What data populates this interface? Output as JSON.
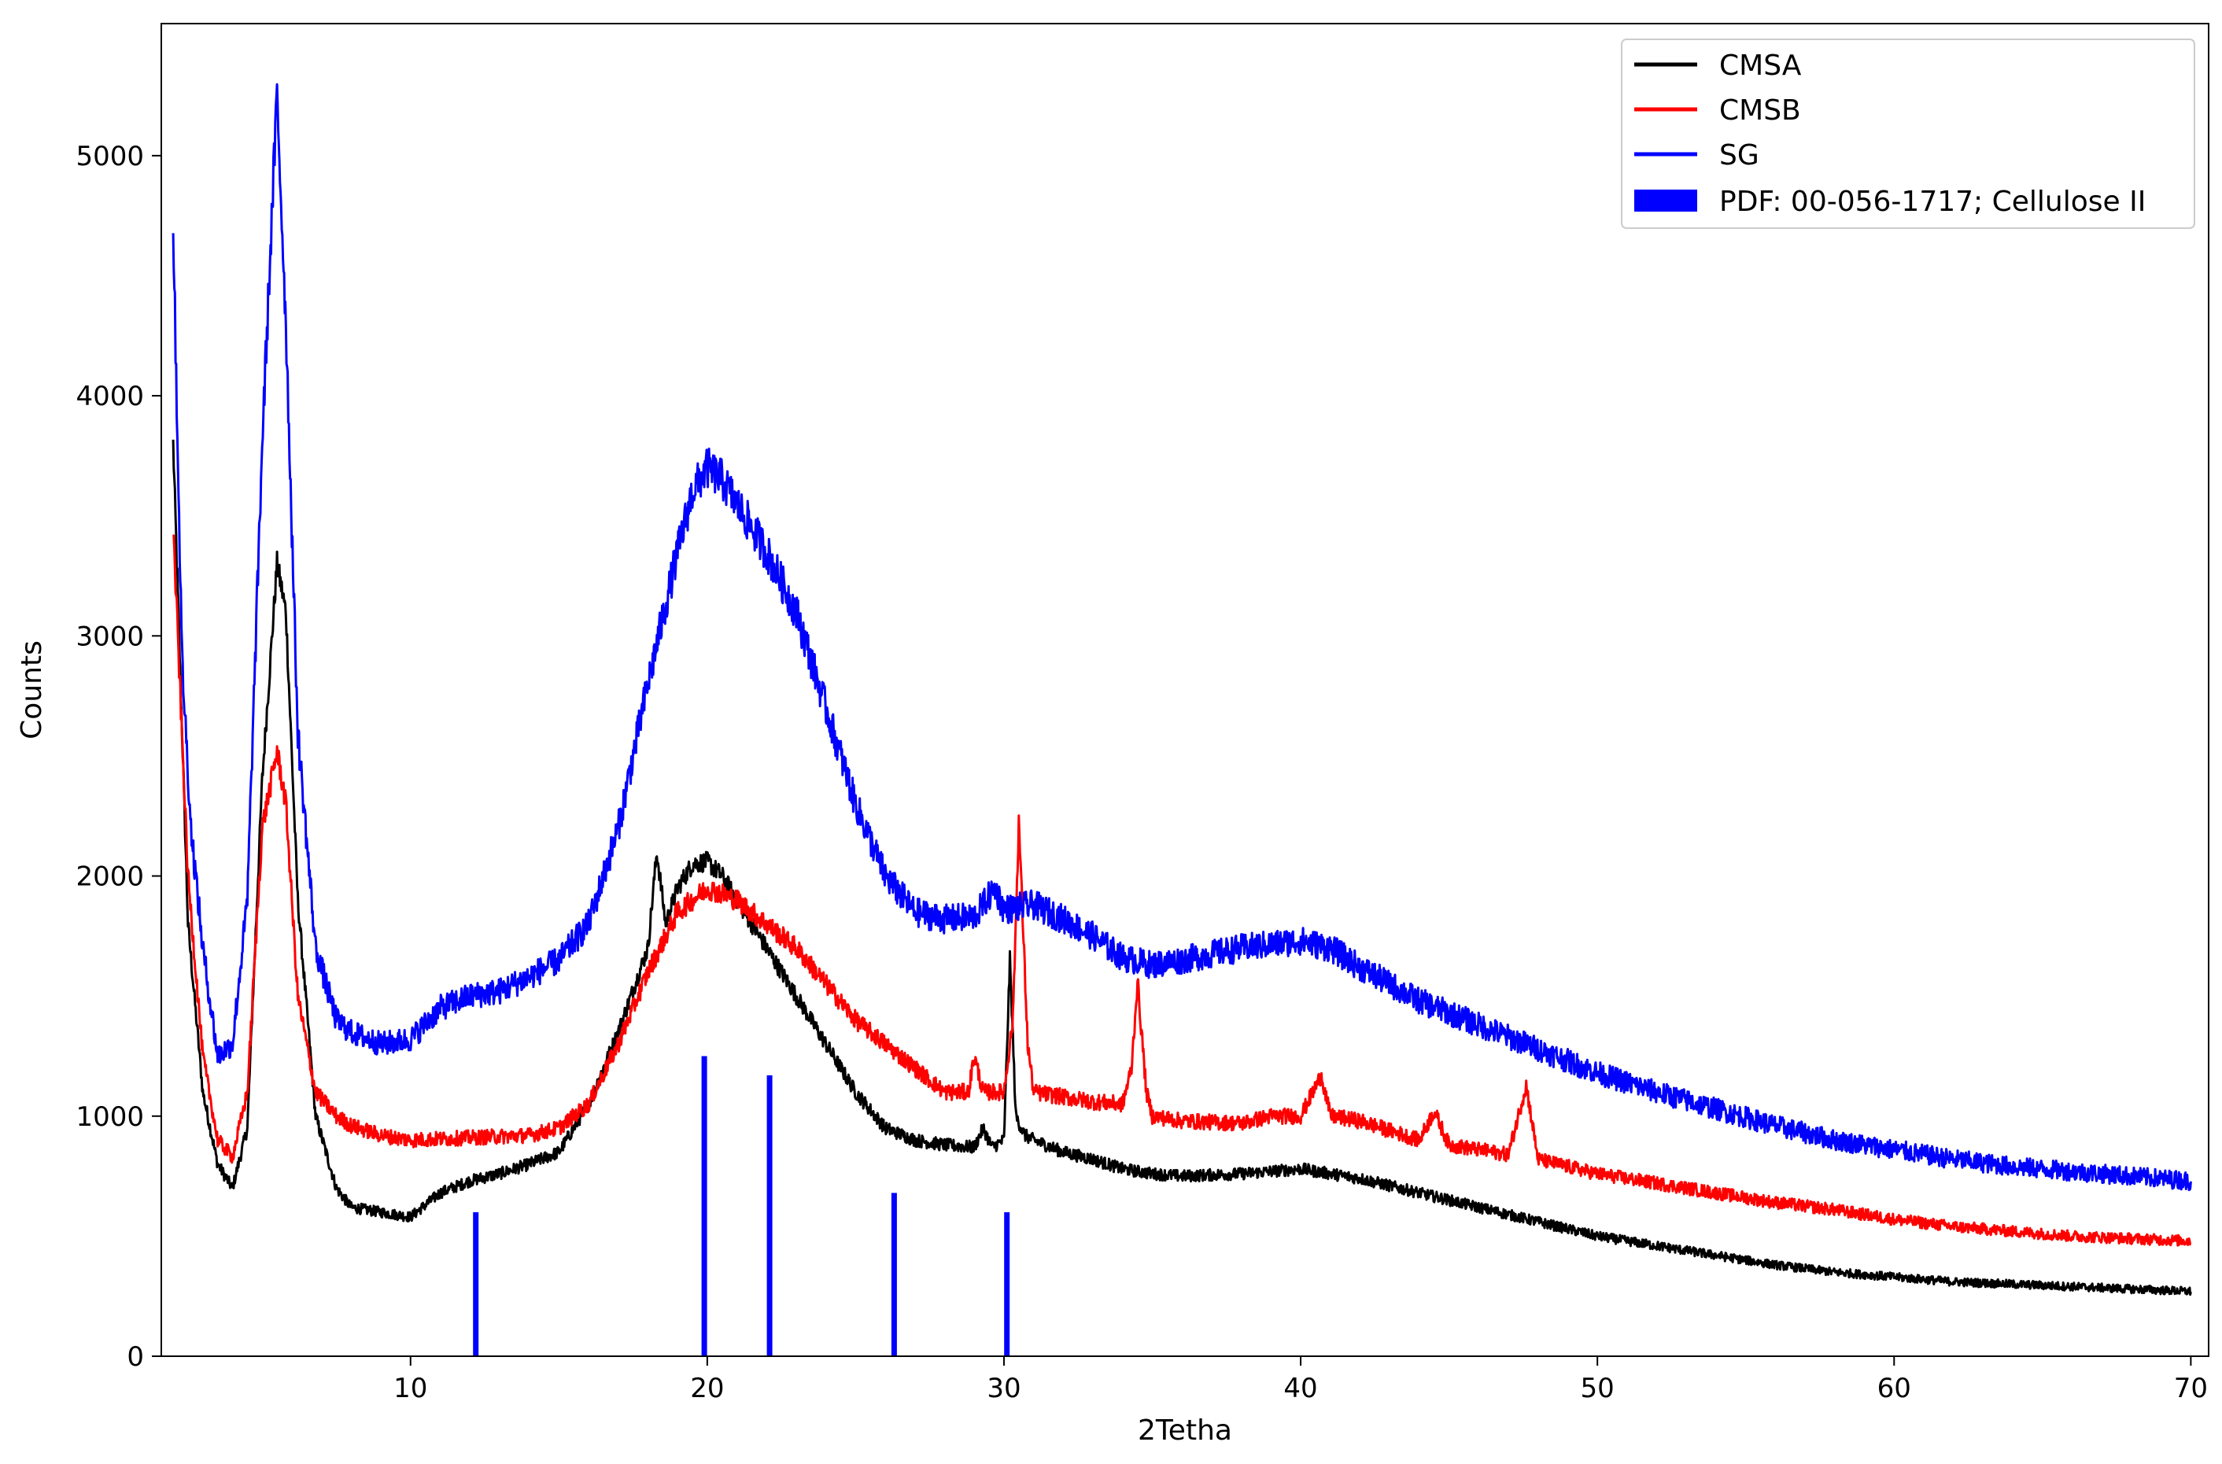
{
  "chart_data": {
    "type": "line",
    "title": "",
    "xlabel": "2Tetha",
    "ylabel": "Counts",
    "xlim": [
      1.6,
      70.6
    ],
    "ylim": [
      0,
      5550
    ],
    "xticks": [
      10,
      20,
      30,
      40,
      50,
      60,
      70
    ],
    "yticks": [
      0,
      1000,
      2000,
      3000,
      4000,
      5000
    ],
    "xtick_labels": [
      "10",
      "20",
      "30",
      "40",
      "50",
      "60",
      "70"
    ],
    "ytick_labels": [
      "0",
      "1000",
      "2000",
      "3000",
      "4000",
      "5000"
    ],
    "grid": false,
    "legend_position": "top-right",
    "series": [
      {
        "name": "CMSA",
        "color": "#000000",
        "x": [
          2.0,
          2.5,
          3.0,
          3.5,
          4.0,
          4.5,
          5.0,
          5.5,
          5.8,
          6.2,
          6.8,
          7.5,
          8.0,
          9.0,
          10.0,
          11.0,
          12.0,
          13.0,
          14.0,
          15.0,
          16.0,
          17.0,
          18.0,
          18.3,
          18.6,
          19.0,
          19.5,
          20.0,
          20.5,
          21.0,
          22.0,
          23.0,
          24.0,
          25.0,
          26.0,
          27.0,
          28.0,
          29.0,
          29.3,
          29.6,
          30.0,
          30.2,
          30.4,
          30.7,
          31.0,
          32.0,
          33.0,
          34.0,
          35.0,
          36.0,
          38.0,
          40.0,
          42.0,
          44.0,
          46.0,
          48.0,
          50.0,
          52.0,
          54.0,
          56.0,
          58.0,
          60.0,
          62.0,
          64.0,
          66.0,
          68.0,
          70.0
        ],
        "y": [
          3800,
          1800,
          1100,
          800,
          700,
          950,
          2400,
          3300,
          3100,
          1900,
          1000,
          700,
          620,
          600,
          580,
          680,
          730,
          760,
          800,
          850,
          1050,
          1350,
          1700,
          2100,
          1800,
          1950,
          2050,
          2060,
          2000,
          1900,
          1700,
          1500,
          1300,
          1100,
          950,
          900,
          880,
          870,
          950,
          870,
          900,
          1650,
          1000,
          920,
          900,
          850,
          820,
          780,
          760,
          750,
          760,
          780,
          740,
          680,
          620,
          560,
          500,
          460,
          420,
          380,
          350,
          330,
          310,
          300,
          290,
          280,
          270
        ]
      },
      {
        "name": "CMSB",
        "color": "#ff0000",
        "x": [
          2.0,
          2.5,
          3.0,
          3.5,
          4.0,
          4.5,
          5.0,
          5.5,
          5.8,
          6.2,
          6.8,
          7.5,
          8.0,
          9.0,
          10.0,
          12.0,
          14.0,
          15.0,
          16.0,
          17.0,
          18.0,
          19.0,
          20.0,
          21.0,
          22.0,
          23.0,
          24.0,
          25.0,
          26.0,
          27.0,
          28.0,
          28.8,
          29.0,
          29.3,
          30.0,
          30.3,
          30.5,
          30.8,
          31.0,
          32.0,
          33.0,
          34.0,
          34.3,
          34.5,
          34.8,
          35.0,
          36.0,
          38.0,
          39.0,
          40.0,
          40.7,
          41.0,
          42.0,
          44.0,
          44.5,
          45.0,
          46.0,
          47.0,
          47.6,
          48.0,
          50.0,
          52.0,
          54.0,
          56.0,
          58.0,
          60.0,
          62.0,
          64.0,
          66.0,
          68.0,
          70.0
        ],
        "y": [
          3450,
          2000,
          1250,
          900,
          830,
          1100,
          2200,
          2520,
          2300,
          1500,
          1100,
          1000,
          960,
          920,
          900,
          910,
          920,
          950,
          1050,
          1300,
          1600,
          1850,
          1950,
          1900,
          1800,
          1700,
          1550,
          1400,
          1300,
          1200,
          1100,
          1100,
          1250,
          1100,
          1100,
          1400,
          2230,
          1300,
          1100,
          1080,
          1060,
          1050,
          1200,
          1560,
          1100,
          1000,
          980,
          970,
          1000,
          1000,
          1170,
          1000,
          980,
          900,
          1020,
          880,
          860,
          840,
          1130,
          820,
          760,
          720,
          680,
          640,
          610,
          570,
          540,
          520,
          500,
          490,
          480
        ]
      },
      {
        "name": "SG",
        "color": "#0000ff",
        "x": [
          2.0,
          2.3,
          2.6,
          3.0,
          3.5,
          4.0,
          4.5,
          5.0,
          5.5,
          5.8,
          6.2,
          6.8,
          7.5,
          8.0,
          9.0,
          10.0,
          11.0,
          12.0,
          13.0,
          14.0,
          15.0,
          16.0,
          17.0,
          18.0,
          19.0,
          19.5,
          20.0,
          20.5,
          21.0,
          22.0,
          23.0,
          24.0,
          25.0,
          26.0,
          27.0,
          28.0,
          29.0,
          29.7,
          30.0,
          31.0,
          32.0,
          33.0,
          34.0,
          35.0,
          36.0,
          38.0,
          40.0,
          41.0,
          42.0,
          44.0,
          46.0,
          48.0,
          50.0,
          52.0,
          54.0,
          56.0,
          58.0,
          60.0,
          62.0,
          64.0,
          66.0,
          68.0,
          70.0
        ],
        "y": [
          4700,
          2900,
          2200,
          1700,
          1250,
          1300,
          1900,
          3800,
          5250,
          4300,
          2600,
          1700,
          1400,
          1350,
          1300,
          1320,
          1450,
          1500,
          1520,
          1580,
          1650,
          1800,
          2200,
          2800,
          3350,
          3600,
          3700,
          3650,
          3550,
          3350,
          3100,
          2700,
          2300,
          2000,
          1850,
          1820,
          1830,
          1950,
          1860,
          1880,
          1820,
          1750,
          1660,
          1630,
          1650,
          1700,
          1730,
          1700,
          1620,
          1480,
          1380,
          1280,
          1180,
          1100,
          1030,
          960,
          900,
          860,
          820,
          790,
          770,
          750,
          730
        ]
      }
    ],
    "reference": {
      "name": "PDF: 00-056-1717; Cellulose II",
      "color": "#0000ff",
      "positions": [
        12.2,
        19.9,
        22.1,
        26.3,
        30.1
      ],
      "intensities": [
        600,
        1250,
        1170,
        680,
        600
      ]
    }
  }
}
